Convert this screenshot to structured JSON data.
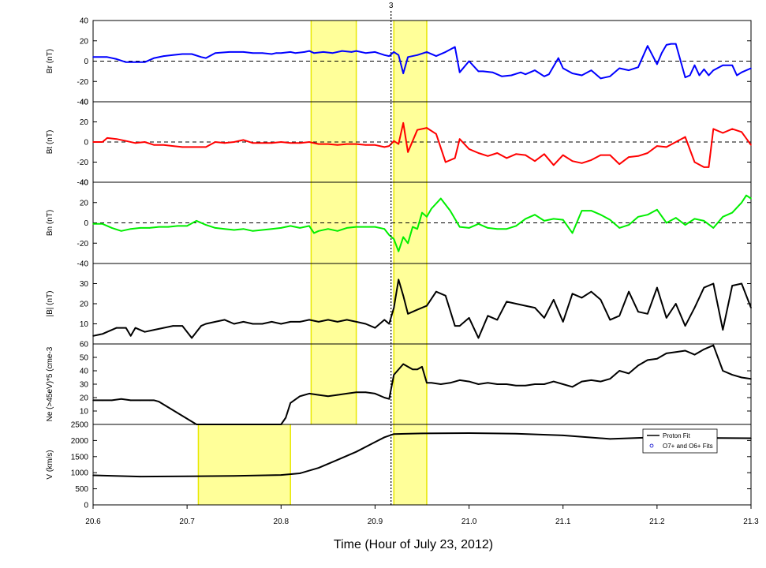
{
  "chart_data": {
    "type": "line",
    "xlabel": "Time (Hour of July 23, 2012)",
    "xlim": [
      20.6,
      21.3
    ],
    "xticks": [
      "20.6",
      "20.7",
      "20.8",
      "20.9",
      "21.0",
      "21.1",
      "21.2",
      "21.3"
    ],
    "marker": {
      "x": 20.917,
      "label": "3",
      "style": "dotted"
    },
    "colors": {
      "br": "#0000ff",
      "bt": "#ff0000",
      "bn": "#00ee00",
      "black": "#000000",
      "highlight": "#ffff99",
      "highlight_edge": "#e8e800"
    },
    "panels": [
      {
        "id": "br",
        "ylabel": "Br (nT)",
        "ylim": [
          -40,
          40
        ],
        "yticks": [
          "40",
          "20",
          "0",
          "-20",
          "-40"
        ],
        "zero_line": true,
        "series": [
          {
            "color": "#0000ff",
            "x": [
              20.6,
              20.615,
              20.625,
              20.635,
              20.645,
              20.655,
              20.665,
              20.675,
              20.685,
              20.695,
              20.705,
              20.715,
              20.72,
              20.73,
              20.745,
              20.76,
              20.77,
              20.78,
              20.79,
              20.795,
              20.8,
              20.81,
              20.815,
              20.825,
              20.83,
              20.835,
              20.845,
              20.855,
              20.865,
              20.875,
              20.88,
              20.89,
              20.9,
              20.91,
              20.915,
              20.92,
              20.925,
              20.93,
              20.935,
              20.945,
              20.955,
              20.965,
              20.975,
              20.985,
              20.99,
              21.0,
              21.01,
              21.015,
              21.025,
              21.035,
              21.045,
              21.055,
              21.06,
              21.07,
              21.08,
              21.085,
              21.095,
              21.1,
              21.11,
              21.12,
              21.13,
              21.14,
              21.15,
              21.16,
              21.17,
              21.18,
              21.19,
              21.2,
              21.205,
              21.21,
              21.215,
              21.22,
              21.23,
              21.235,
              21.24,
              21.245,
              21.25,
              21.255,
              21.26,
              21.27,
              21.28,
              21.285,
              21.29,
              21.3
            ],
            "y": [
              4,
              4,
              2,
              -1,
              -1,
              -1,
              3,
              5,
              6,
              7,
              7,
              4,
              3,
              8,
              9,
              9,
              8,
              8,
              7,
              8,
              8,
              9,
              8,
              9,
              10,
              8,
              9,
              8,
              10,
              9,
              10,
              8,
              9,
              6,
              5,
              9,
              6,
              -12,
              4,
              6,
              9,
              5,
              9,
              14,
              -11,
              0,
              -10,
              -10,
              -11,
              -15,
              -14,
              -11,
              -13,
              -9,
              -15,
              -13,
              3,
              -7,
              -12,
              -14,
              -9,
              -17,
              -15,
              -7,
              -9,
              -6,
              15,
              -3,
              8,
              16,
              17,
              17,
              -16,
              -14,
              -4,
              -14,
              -8,
              -14,
              -9,
              -4,
              -4,
              -14,
              -11,
              -7
            ]
          }
        ]
      },
      {
        "id": "bt",
        "ylabel": "Bt (nT)",
        "ylim": [
          -40,
          40
        ],
        "yticks": [
          "40",
          "20",
          "0",
          "-20",
          "-40"
        ],
        "zero_line": true,
        "series": [
          {
            "color": "#ff0000",
            "x": [
              20.6,
              20.61,
              20.615,
              20.625,
              20.635,
              20.645,
              20.655,
              20.665,
              20.675,
              20.685,
              20.695,
              20.705,
              20.715,
              20.72,
              20.73,
              20.74,
              20.75,
              20.76,
              20.77,
              20.78,
              20.79,
              20.8,
              20.81,
              20.82,
              20.83,
              20.84,
              20.85,
              20.86,
              20.87,
              20.88,
              20.89,
              20.9,
              20.91,
              20.915,
              20.92,
              20.925,
              20.93,
              20.935,
              20.945,
              20.955,
              20.965,
              20.975,
              20.985,
              20.99,
              21.0,
              21.01,
              21.02,
              21.03,
              21.04,
              21.05,
              21.06,
              21.07,
              21.08,
              21.09,
              21.1,
              21.11,
              21.12,
              21.13,
              21.14,
              21.15,
              21.16,
              21.17,
              21.18,
              21.19,
              21.2,
              21.21,
              21.22,
              21.23,
              21.24,
              21.25,
              21.255,
              21.26,
              21.27,
              21.28,
              21.29,
              21.3
            ],
            "y": [
              0,
              0,
              4,
              3,
              1,
              -1,
              0,
              -3,
              -3,
              -4,
              -5,
              -5,
              -5,
              -5,
              0,
              -1,
              0,
              2,
              -1,
              -1,
              -1,
              0,
              -1,
              -1,
              0,
              -2,
              -2,
              -3,
              -2,
              -2,
              -3,
              -3,
              -5,
              -4,
              1,
              -2,
              19,
              -10,
              12,
              14,
              8,
              -20,
              -16,
              3,
              -7,
              -11,
              -14,
              -11,
              -16,
              -12,
              -13,
              -19,
              -12,
              -23,
              -13,
              -19,
              -21,
              -18,
              -13,
              -13,
              -22,
              -15,
              -14,
              -11,
              -4,
              -5,
              0,
              5,
              -20,
              -25,
              -25,
              13,
              9,
              13,
              10,
              -3
            ]
          }
        ]
      },
      {
        "id": "bn",
        "ylabel": "Bn (nT)",
        "ylim": [
          -40,
          40
        ],
        "yticks": [
          "40",
          "20",
          "0",
          "-20",
          "-40"
        ],
        "zero_line": true,
        "series": [
          {
            "color": "#00ee00",
            "x": [
              20.6,
              20.61,
              20.62,
              20.63,
              20.64,
              20.65,
              20.66,
              20.67,
              20.68,
              20.69,
              20.7,
              20.71,
              20.72,
              20.73,
              20.74,
              20.75,
              20.76,
              20.77,
              20.78,
              20.79,
              20.8,
              20.81,
              20.82,
              20.83,
              20.835,
              20.84,
              20.85,
              20.86,
              20.87,
              20.88,
              20.89,
              20.9,
              20.91,
              20.915,
              20.92,
              20.925,
              20.93,
              20.935,
              20.94,
              20.945,
              20.95,
              20.955,
              20.96,
              20.97,
              20.98,
              20.99,
              21.0,
              21.01,
              21.02,
              21.03,
              21.04,
              21.05,
              21.06,
              21.07,
              21.08,
              21.09,
              21.1,
              21.11,
              21.12,
              21.13,
              21.14,
              21.15,
              21.16,
              21.17,
              21.18,
              21.19,
              21.2,
              21.21,
              21.22,
              21.23,
              21.24,
              21.25,
              21.26,
              21.27,
              21.28,
              21.29,
              21.295,
              21.3
            ],
            "y": [
              -1,
              -1,
              -5,
              -8,
              -6,
              -5,
              -5,
              -4,
              -4,
              -3,
              -3,
              2,
              -2,
              -5,
              -6,
              -7,
              -6,
              -8,
              -7,
              -6,
              -5,
              -3,
              -5,
              -3,
              -10,
              -8,
              -6,
              -8,
              -5,
              -4,
              -4,
              -4,
              -6,
              -12,
              -16,
              -28,
              -14,
              -20,
              -4,
              -6,
              10,
              6,
              14,
              24,
              12,
              -4,
              -5,
              -1,
              -5,
              -6,
              -6,
              -3,
              4,
              8,
              2,
              4,
              3,
              -10,
              12,
              12,
              8,
              3,
              -5,
              -2,
              6,
              8,
              13,
              0,
              5,
              -2,
              4,
              2,
              -5,
              6,
              10,
              20,
              27,
              24
            ]
          }
        ]
      },
      {
        "id": "b",
        "ylabel": "|B| (nT)",
        "ylim": [
          0,
          40
        ],
        "yticks": [
          "30",
          "20",
          "10"
        ],
        "zero_line": false,
        "series": [
          {
            "color": "#000000",
            "x": [
              20.6,
              20.61,
              20.615,
              20.625,
              20.635,
              20.64,
              20.645,
              20.655,
              20.665,
              20.675,
              20.685,
              20.695,
              20.705,
              20.715,
              20.72,
              20.73,
              20.74,
              20.75,
              20.76,
              20.77,
              20.78,
              20.79,
              20.8,
              20.81,
              20.82,
              20.83,
              20.84,
              20.85,
              20.86,
              20.87,
              20.88,
              20.89,
              20.9,
              20.91,
              20.915,
              20.92,
              20.925,
              20.93,
              20.935,
              20.945,
              20.955,
              20.965,
              20.975,
              20.985,
              20.99,
              21.0,
              21.01,
              21.02,
              21.03,
              21.04,
              21.05,
              21.06,
              21.07,
              21.08,
              21.09,
              21.1,
              21.11,
              21.12,
              21.13,
              21.14,
              21.15,
              21.16,
              21.17,
              21.18,
              21.19,
              21.2,
              21.21,
              21.22,
              21.23,
              21.24,
              21.25,
              21.26,
              21.27,
              21.28,
              21.29,
              21.3
            ],
            "y": [
              4,
              5,
              6,
              8,
              8,
              4,
              8,
              6,
              7,
              8,
              9,
              9,
              3,
              9,
              10,
              11,
              12,
              10,
              11,
              10,
              10,
              11,
              10,
              11,
              11,
              12,
              11,
              12,
              11,
              12,
              11,
              10,
              8,
              12,
              10,
              18,
              32,
              24,
              15,
              17,
              19,
              26,
              24,
              9,
              9,
              13,
              3,
              14,
              12,
              21,
              20,
              19,
              18,
              13,
              22,
              11,
              25,
              23,
              26,
              22,
              12,
              14,
              26,
              16,
              15,
              28,
              13,
              20,
              9,
              18,
              28,
              30,
              7,
              29,
              30,
              18
            ]
          }
        ]
      },
      {
        "id": "ne",
        "ylabel": "Ne (>45eV)*5 (cme-3",
        "ylim": [
          0,
          60
        ],
        "yticks": [
          "60",
          "50",
          "40",
          "30",
          "20",
          "10"
        ],
        "zero_line": false,
        "series": [
          {
            "color": "#000000",
            "x": [
              20.6,
              20.61,
              20.62,
              20.63,
              20.64,
              20.65,
              20.66,
              20.665,
              20.67,
              20.71,
              20.72,
              20.8,
              20.805,
              20.81,
              20.82,
              20.83,
              20.84,
              20.85,
              20.86,
              20.87,
              20.88,
              20.89,
              20.9,
              20.91,
              20.915,
              20.92,
              20.93,
              20.94,
              20.945,
              20.95,
              20.955,
              20.96,
              20.97,
              20.98,
              20.99,
              21.0,
              21.01,
              21.02,
              21.03,
              21.04,
              21.05,
              21.06,
              21.07,
              21.08,
              21.09,
              21.1,
              21.11,
              21.12,
              21.13,
              21.14,
              21.15,
              21.16,
              21.17,
              21.18,
              21.19,
              21.2,
              21.21,
              21.22,
              21.23,
              21.24,
              21.25,
              21.26,
              21.27,
              21.28,
              21.29,
              21.3
            ],
            "y": [
              18,
              18,
              18,
              19,
              18,
              18,
              18,
              18,
              17,
              0,
              0,
              0,
              5,
              16,
              21,
              23,
              22,
              21,
              22,
              23,
              24,
              24,
              23,
              20,
              19,
              37,
              45,
              41,
              41,
              43,
              31,
              31,
              30,
              31,
              33,
              32,
              30,
              31,
              30,
              30,
              29,
              29,
              30,
              30,
              32,
              30,
              28,
              32,
              33,
              32,
              34,
              40,
              38,
              44,
              48,
              49,
              53,
              54,
              55,
              52,
              56,
              59,
              40,
              37,
              35,
              34
            ]
          }
        ]
      },
      {
        "id": "v",
        "ylabel": "V (km/s)",
        "ylim": [
          0,
          2500
        ],
        "yticks": [
          "2500",
          "2000",
          "1500",
          "1000",
          "500",
          "0"
        ],
        "zero_line": false,
        "legend": {
          "position": "top-right",
          "entries": [
            "Proton Fit",
            "O7+ and O6+ Fits"
          ]
        },
        "series": [
          {
            "name": "Proton Fit",
            "color": "#000000",
            "x": [
              20.6,
              20.65,
              20.7,
              20.75,
              20.8,
              20.82,
              20.84,
              20.86,
              20.88,
              20.9,
              20.91,
              20.92,
              20.95,
              21.0,
              21.05,
              21.1,
              21.15,
              21.2,
              21.25,
              21.3
            ],
            "y": [
              920,
              880,
              890,
              900,
              930,
              980,
              1150,
              1400,
              1650,
              1950,
              2100,
              2200,
              2220,
              2230,
              2210,
              2160,
              2050,
              2100,
              2080,
              2070
            ]
          }
        ]
      }
    ],
    "highlights": [
      {
        "panels": [
          "br",
          "bt",
          "bn",
          "b",
          "ne"
        ],
        "x": [
          20.832,
          20.88
        ]
      },
      {
        "panels": [
          "br",
          "bt",
          "bn",
          "b",
          "ne",
          "v"
        ],
        "x": [
          20.92,
          20.955
        ]
      },
      {
        "panels": [
          "v"
        ],
        "x": [
          20.712,
          20.81
        ]
      }
    ]
  }
}
